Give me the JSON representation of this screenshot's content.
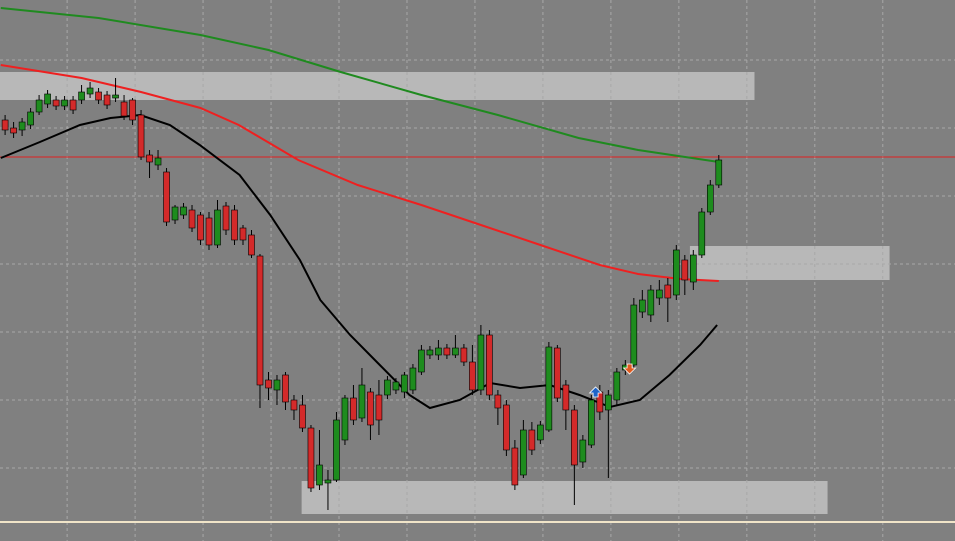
{
  "chart_data": {
    "type": "candlestick",
    "up_color": "#1e8c1e",
    "down_color": "#d42a2a",
    "wick_color": "#000000",
    "grid": true,
    "xlim": [
      -0.6,
      111.8
    ],
    "ylim": [
      0,
      541
    ],
    "xticks": [
      7.3,
      15.3,
      23.3,
      31.3,
      39.3,
      47.3,
      55.3,
      63.3,
      71.3,
      79.3,
      87.3,
      95.3,
      103.3
    ],
    "yticks": [
      73,
      141,
      209,
      277,
      345,
      413,
      481
    ],
    "open": [
      421,
      413,
      411,
      416,
      429,
      437,
      441,
      435,
      441,
      441,
      447,
      449,
      446,
      443,
      439,
      441,
      426,
      386,
      376,
      369,
      321,
      326,
      331,
      326,
      323,
      296,
      335,
      331,
      313,
      306,
      285,
      161,
      151,
      166,
      141,
      136,
      113,
      56,
      58,
      61,
      101,
      143,
      123,
      149,
      146,
      146,
      151,
      149,
      151,
      169,
      186,
      186,
      193,
      186,
      193,
      179,
      151,
      206,
      146,
      136,
      93,
      66,
      111,
      101,
      111,
      193,
      156,
      131,
      79,
      96,
      149,
      131,
      141,
      171,
      176,
      229,
      226,
      243,
      256,
      246,
      281,
      259,
      286,
      329,
      356
    ],
    "high": [
      426,
      419,
      423,
      433,
      446,
      451,
      445,
      445,
      445,
      456,
      459,
      453,
      450,
      463,
      446,
      443,
      431,
      391,
      391,
      373,
      336,
      338,
      336,
      329,
      329,
      341,
      339,
      336,
      316,
      311,
      287,
      169,
      166,
      169,
      146,
      146,
      116,
      111,
      71,
      129,
      146,
      156,
      173,
      153,
      161,
      165,
      163,
      169,
      177,
      196,
      195,
      201,
      197,
      206,
      197,
      196,
      216,
      211,
      151,
      141,
      101,
      121,
      119,
      120,
      199,
      196,
      161,
      136,
      106,
      146,
      156,
      151,
      173,
      181,
      243,
      251,
      256,
      261,
      263,
      296,
      286,
      291,
      333,
      361,
      386
    ],
    "low": [
      406,
      403,
      405,
      412,
      426,
      433,
      431,
      431,
      427,
      437,
      443,
      437,
      432,
      439,
      421,
      416,
      381,
      363,
      371,
      315,
      317,
      322,
      309,
      296,
      291,
      293,
      306,
      296,
      296,
      283,
      133,
      141,
      136,
      131,
      121,
      109,
      49,
      51,
      31,
      59,
      96,
      116,
      119,
      101,
      106,
      142,
      147,
      143,
      147,
      166,
      182,
      181,
      182,
      183,
      175,
      146,
      146,
      141,
      116,
      85,
      51,
      63,
      86,
      97,
      109,
      139,
      111,
      36,
      73,
      93,
      121,
      63,
      136,
      166,
      173,
      223,
      219,
      236,
      219,
      241,
      246,
      251,
      283,
      326,
      353
    ],
    "close": [
      411,
      408,
      419,
      429,
      441,
      447,
      435,
      441,
      431,
      449,
      453,
      441,
      436,
      446,
      425,
      421,
      384,
      379,
      383,
      319,
      334,
      334,
      313,
      301,
      296,
      331,
      311,
      301,
      301,
      286,
      156,
      153,
      161,
      139,
      131,
      113,
      53,
      76,
      61,
      121,
      143,
      121,
      156,
      116,
      121,
      161,
      159,
      166,
      173,
      191,
      191,
      193,
      186,
      193,
      179,
      151,
      206,
      146,
      133,
      91,
      56,
      111,
      91,
      116,
      194,
      143,
      131,
      76,
      101,
      141,
      129,
      146,
      169,
      176,
      236,
      241,
      251,
      251,
      243,
      291,
      261,
      286,
      329,
      356,
      381
    ],
    "lines": [
      {
        "color": "#1f8a1f",
        "x": [
          -0.5,
          11,
          23,
          31,
          39.5,
          49,
          58,
          67.5,
          74.5,
          84
        ],
        "values": [
          533,
          523,
          506,
          491,
          469,
          446,
          426,
          403,
          391,
          379
        ]
      },
      {
        "color": "#ee2020",
        "x": [
          -0.5,
          9,
          16,
          23,
          27.5,
          34.5,
          41.5,
          49,
          56,
          63,
          70,
          74.5,
          79.5,
          84
        ],
        "values": [
          476,
          463,
          449,
          433,
          416,
          381,
          356,
          336,
          316,
          296,
          276,
          267,
          262,
          260
        ]
      },
      {
        "color": "#000000",
        "x": [
          -0.5,
          4.1,
          8.8,
          12.4,
          15.9,
          19.4,
          22.9,
          27.6,
          31.2,
          34.7,
          37.1,
          40.6,
          44.1,
          47.6,
          50,
          53.5,
          57.1,
          60.6,
          64.1,
          67.6,
          71.2,
          74.7,
          78.2,
          81.8,
          83.8
        ],
        "values": [
          383,
          399,
          416,
          423,
          426,
          416,
          396,
          366,
          326,
          281,
          241,
          206,
          176,
          146,
          133,
          141,
          158,
          153,
          156,
          146,
          134,
          141,
          166,
          196,
          216
        ]
      }
    ],
    "zones": [
      {
        "x": [
          -0.6,
          88.2
        ],
        "values": [
          441,
          469
        ]
      },
      {
        "x": [
          80.6,
          104.1
        ],
        "values": [
          261,
          295
        ]
      },
      {
        "x": [
          34.9,
          96.8
        ],
        "values": [
          27,
          60
        ]
      }
    ],
    "level": {
      "color": "#e02020",
      "value": 384
    },
    "signals": [
      {
        "color": "#1e64c8",
        "x": 69.5,
        "value": 148,
        "direction": "up"
      },
      {
        "color": "#e05a1e",
        "x": 73.5,
        "value": 173,
        "direction": "down"
      }
    ]
  }
}
